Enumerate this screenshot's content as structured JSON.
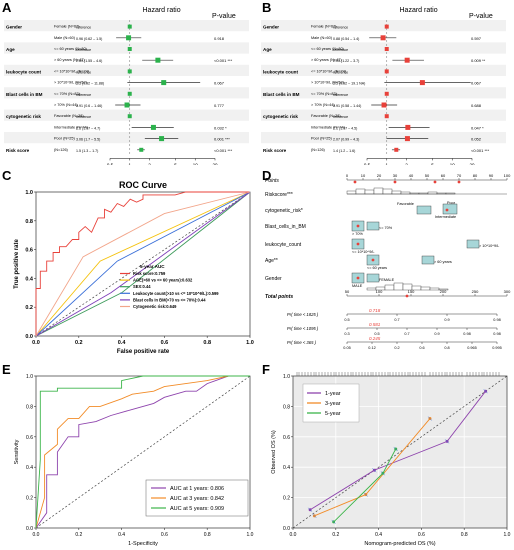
{
  "forest_common": {
    "hr_header": "Hazard ratio",
    "p_header": "P-value",
    "axis_ticks": [
      "0.5",
      "1",
      "2",
      "5",
      "10",
      "20"
    ],
    "variables": [
      "Gender",
      "Age",
      "leukocyte count",
      "Blast cells in BM",
      "cytogenetic risk",
      "Risk score"
    ]
  },
  "panel_a": {
    "letter": "A",
    "color": "#2bb24c",
    "rows": [
      {
        "var": "Gender",
        "group": "Female (N=67)",
        "hr": "",
        "p": "",
        "reference": true
      },
      {
        "var": "",
        "group": "Male (N=60)",
        "hr": "0.96 (0.62 – 1.5)",
        "p": "0.918",
        "value": 0.96,
        "lo": 0.62,
        "hi": 1.5
      },
      {
        "var": "Age",
        "group": "<= 60 years (N=80)",
        "hr": "",
        "p": "",
        "reference": true
      },
      {
        "var": "",
        "group": "> 60 years (N=47)",
        "hr": "2.69 (1.55 – 4.6)",
        "p": "<0.001 ***",
        "value": 2.69,
        "lo": 1.55,
        "hi": 4.6
      },
      {
        "var": "leukocyte count",
        "group": "<= 10*10^9/L (N=74)",
        "hr": "",
        "p": "",
        "reference": true
      },
      {
        "var": "",
        "group": "> 10*10^9/L (N=53)",
        "hr": "3.3 (0.92 – 11.88)",
        "p": "0.067",
        "value": 3.3,
        "lo": 0.92,
        "hi": 11.88
      },
      {
        "var": "Blast cells in BM",
        "group": "<= 70% (N=83)",
        "hr": "",
        "p": "",
        "reference": true
      },
      {
        "var": "",
        "group": "> 70% (N=44)",
        "hr": "0.91 (0.6 – 1.46)",
        "p": "0.777",
        "value": 0.91,
        "lo": 0.6,
        "hi": 1.46
      },
      {
        "var": "cytogenetic risk",
        "group": "Favorable (N=28)",
        "hr": "",
        "p": "",
        "reference": true
      },
      {
        "var": "",
        "group": "Intermediate (N=74)",
        "hr": "2.3 (1.07 – 4.7)",
        "p": "0.032 *",
        "value": 2.3,
        "lo": 1.07,
        "hi": 4.7
      },
      {
        "var": "",
        "group": "Poor (N=25)",
        "hr": "3.06 (1.7 – 5.5)",
        "p": "0.001 ***",
        "value": 3.06,
        "lo": 1.7,
        "hi": 5.5
      },
      {
        "var": "Risk score",
        "group": "(N=126)",
        "hr": "1.5 (1.3 – 1.7)",
        "p": "<0.001 ***",
        "value": 1.5,
        "lo": 1.3,
        "hi": 1.7
      }
    ]
  },
  "panel_b": {
    "letter": "B",
    "color": "#e8413a",
    "rows": [
      {
        "var": "Gender",
        "group": "Female (N=67)",
        "hr": "",
        "p": "",
        "reference": true
      },
      {
        "var": "",
        "group": "Male (N=60)",
        "hr": "0.88 (0.54 – 1.4)",
        "p": "0.597",
        "value": 0.88,
        "lo": 0.54,
        "hi": 1.4
      },
      {
        "var": "Age",
        "group": "<= 60 years (N=80)",
        "hr": "",
        "p": "",
        "reference": true
      },
      {
        "var": "",
        "group": "> 60 years (N=47)",
        "hr": "2.05 (1.22 – 3.7)",
        "p": "0.009 **",
        "value": 2.05,
        "lo": 1.22,
        "hi": 3.7
      },
      {
        "var": "leukocyte count",
        "group": "<= 10*10^9/L (N=74)",
        "hr": "",
        "p": "",
        "reference": true
      },
      {
        "var": "",
        "group": "> 10*10^9/L (N=53)",
        "hr": "3.5 (0.92 – 19.1 NA)",
        "p": "0.067",
        "value": 3.5,
        "lo": 0.92,
        "hi": 19.1
      },
      {
        "var": "Blast cells in BM",
        "group": "<= 70% (N=83)",
        "hr": "",
        "p": "",
        "reference": true
      },
      {
        "var": "",
        "group": "> 70% (N=44)",
        "hr": "0.91 (0.58 – 1.44)",
        "p": "0.688",
        "value": 0.91,
        "lo": 0.58,
        "hi": 1.44
      },
      {
        "var": "cytogenetic risk",
        "group": "Favorable (N=28)",
        "hr": "",
        "p": "",
        "reference": true
      },
      {
        "var": "",
        "group": "Intermediate (N=74)",
        "hr": "2.1 (1.07 – 4.5)",
        "p": "0.047 *",
        "value": 2.1,
        "lo": 1.07,
        "hi": 4.5
      },
      {
        "var": "",
        "group": "Poor (N=25)",
        "hr": "2.07 (0.99 – 4.3)",
        "p": "0.052",
        "value": 2.07,
        "lo": 0.99,
        "hi": 4.3
      },
      {
        "var": "Risk score",
        "group": "(N=126)",
        "hr": "1.4 (1.2 – 1.6)",
        "p": "<0.001 ***",
        "value": 1.4,
        "lo": 1.2,
        "hi": 1.6
      }
    ]
  },
  "chart_data": [
    {
      "type": "line",
      "panel": "C",
      "title": "ROC Curve",
      "xlabel": "False positive rate",
      "ylabel": "True positive rate",
      "xlim": [
        0,
        1
      ],
      "ylim": [
        0,
        1
      ],
      "xticks": [
        "0.0",
        "0.2",
        "0.4",
        "0.6",
        "0.8",
        "1.0"
      ],
      "yticks": [
        "0.0",
        "0.2",
        "0.4",
        "0.6",
        "0.8",
        "1.0"
      ],
      "legend_title": "5-year AUC",
      "series": [
        {
          "name": "Risk score:0.759",
          "color": "#e8413a",
          "x": [
            0,
            0,
            0.02,
            0.02,
            0.05,
            0.05,
            0.08,
            0.08,
            0.11,
            0.11,
            0.14,
            0.17,
            0.2,
            0.2,
            0.23,
            0.26,
            0.29,
            0.32,
            0.32,
            0.35,
            0.38,
            0.41,
            0.44,
            0.47,
            0.5,
            0.5,
            0.55,
            0.6,
            0.65,
            0.7,
            0.75,
            0.8,
            0.85,
            0.9,
            0.95,
            1
          ],
          "y": [
            0,
            0.33,
            0.33,
            0.45,
            0.45,
            0.52,
            0.52,
            0.58,
            0.58,
            0.62,
            0.62,
            0.67,
            0.67,
            0.72,
            0.76,
            0.72,
            0.82,
            0.82,
            0.88,
            0.86,
            0.92,
            0.9,
            0.95,
            0.93,
            0.95,
            0.98,
            0.98,
            0.98,
            0.98,
            1,
            1,
            1,
            1,
            1,
            1,
            1
          ]
        },
        {
          "name": "AGE(>60 vs <= 60 years):0.632",
          "color": "#f4c20d",
          "x": [
            0,
            0.3,
            1
          ],
          "y": [
            0,
            0.52,
            1
          ]
        },
        {
          "name": "SEX:0.44",
          "color": "#3c9a5a",
          "x": [
            0,
            0.4,
            1
          ],
          "y": [
            0,
            0.3,
            1
          ]
        },
        {
          "name": "Leukocyte count(>10 vs <= 10*10^9/L):0.599",
          "color": "#3a6fd8",
          "x": [
            0,
            0.38,
            1
          ],
          "y": [
            0,
            0.52,
            1
          ]
        },
        {
          "name": "Blast cells in BM(>70 vs <= 70%):0.44",
          "color": "#7e3fb8",
          "x": [
            0,
            0.35,
            1
          ],
          "y": [
            0,
            0.3,
            1
          ]
        },
        {
          "name": "Cytogenetic risk:0.649",
          "color": "#f2a58a",
          "x": [
            0,
            0.22,
            0.6,
            1
          ],
          "y": [
            0,
            0.55,
            0.85,
            1
          ]
        }
      ]
    },
    {
      "type": "line",
      "panel": "E",
      "xlabel": "1-Specificity",
      "ylabel": "Sensitivity",
      "xlim": [
        0,
        1
      ],
      "ylim": [
        0,
        1
      ],
      "xticks": [
        "0.0",
        "0.2",
        "0.4",
        "0.6",
        "0.8",
        "1.0"
      ],
      "yticks": [
        "0.0",
        "0.2",
        "0.4",
        "0.6",
        "0.8",
        "1.0"
      ],
      "series": [
        {
          "name": "AUC at 1 years: 0.806",
          "color": "#8e44ad",
          "x": [
            0,
            0.05,
            0.05,
            0.1,
            0.1,
            0.15,
            0.2,
            0.2,
            0.28,
            0.35,
            0.45,
            0.55,
            0.6,
            0.7,
            0.75,
            0.8,
            0.9,
            1
          ],
          "y": [
            0,
            0.1,
            0.35,
            0.35,
            0.5,
            0.6,
            0.6,
            0.68,
            0.7,
            0.74,
            0.78,
            0.82,
            0.86,
            0.9,
            0.9,
            0.95,
            1,
            1
          ]
        },
        {
          "name": "AUC at 3 years: 0.842",
          "color": "#f28c28",
          "x": [
            0,
            0.04,
            0.04,
            0.1,
            0.1,
            0.15,
            0.2,
            0.25,
            0.3,
            0.4,
            0.45,
            0.55,
            0.6,
            0.7,
            0.8,
            0.9,
            1
          ],
          "y": [
            0,
            0.2,
            0.48,
            0.55,
            0.65,
            0.72,
            0.72,
            0.8,
            0.8,
            0.85,
            0.88,
            0.9,
            0.93,
            0.95,
            0.97,
            1,
            1
          ]
        },
        {
          "name": "AUC at 5 years: 0.909",
          "color": "#3cb54a",
          "x": [
            0,
            0.02,
            0.02,
            0.1,
            0.1,
            0.4,
            0.4,
            0.5,
            1
          ],
          "y": [
            0,
            0.45,
            0.9,
            0.9,
            0.92,
            0.92,
            0.97,
            1,
            1
          ]
        }
      ]
    },
    {
      "type": "line",
      "panel": "F",
      "xlabel": "Nomogram-predicted OS (%)",
      "ylabel": "Observed OS (%)",
      "xlim": [
        0,
        1
      ],
      "ylim": [
        0,
        1
      ],
      "xticks": [
        "0.0",
        "0.2",
        "0.4",
        "0.6",
        "0.8",
        "1.0"
      ],
      "yticks": [
        "0.0",
        "0.2",
        "0.4",
        "0.6",
        "0.8",
        "1.0"
      ],
      "series": [
        {
          "name": "1-year",
          "color": "#8e44ad",
          "x": [
            0.08,
            0.38,
            0.72,
            0.9
          ],
          "y": [
            0.12,
            0.38,
            0.57,
            0.9
          ]
        },
        {
          "name": "3-year",
          "color": "#f28c28",
          "x": [
            0.1,
            0.34,
            0.64
          ],
          "y": [
            0.08,
            0.22,
            0.72
          ]
        },
        {
          "name": "5-year",
          "color": "#3cb54a",
          "x": [
            0.19,
            0.42,
            0.48
          ],
          "y": [
            0.04,
            0.36,
            0.52
          ]
        }
      ]
    }
  ],
  "nomogram": {
    "letter": "D",
    "rows": [
      {
        "label": "Points",
        "ticks": [
          "0",
          "10",
          "20",
          "30",
          "40",
          "50",
          "60",
          "70",
          "80",
          "90",
          "100"
        ],
        "bold": false,
        "italic": true
      },
      {
        "label": "Riskscore***",
        "bold": false
      },
      {
        "label": "cytogenetic_risk*",
        "tick_labels": [
          "Favorable",
          "Poor",
          "Intermediate"
        ]
      },
      {
        "label": "Blast_cells_in_BM",
        "tick_labels": [
          "> 70%",
          "<= 70%"
        ]
      },
      {
        "label": "leukocyte_count",
        "tick_labels": [
          "<= 10*10^9/L",
          "> 10*10^9/L"
        ]
      },
      {
        "label": "Age**",
        "tick_labels": [
          "<= 60 years",
          "> 60 years"
        ]
      },
      {
        "label": "Gender",
        "tick_labels": [
          "MALE",
          "FEMALE"
        ]
      },
      {
        "label": "Total points",
        "ticks": [
          "50",
          "100",
          "150",
          "200",
          "250",
          "300"
        ],
        "bold": true,
        "italic": true
      }
    ],
    "prob_rows": [
      {
        "label": "Pr( time < 1825 )",
        "ticks": [
          "0.5",
          "0.7",
          "0.9",
          "0.98"
        ],
        "red": "0.718"
      },
      {
        "label": "Pr( time < 1095 )",
        "ticks": [
          "0.3",
          "0.5",
          "0.7",
          "0.9",
          "0.98",
          "0.98"
        ],
        "red": "0.581"
      },
      {
        "label": "Pr( time < 365 )",
        "ticks": [
          "0.05",
          "0.12",
          "0.2",
          "0.6",
          "0.8",
          "0.965",
          "0.995"
        ],
        "red": "0.245"
      }
    ]
  },
  "labels": {
    "c": "C",
    "e": "E",
    "f": "F"
  }
}
